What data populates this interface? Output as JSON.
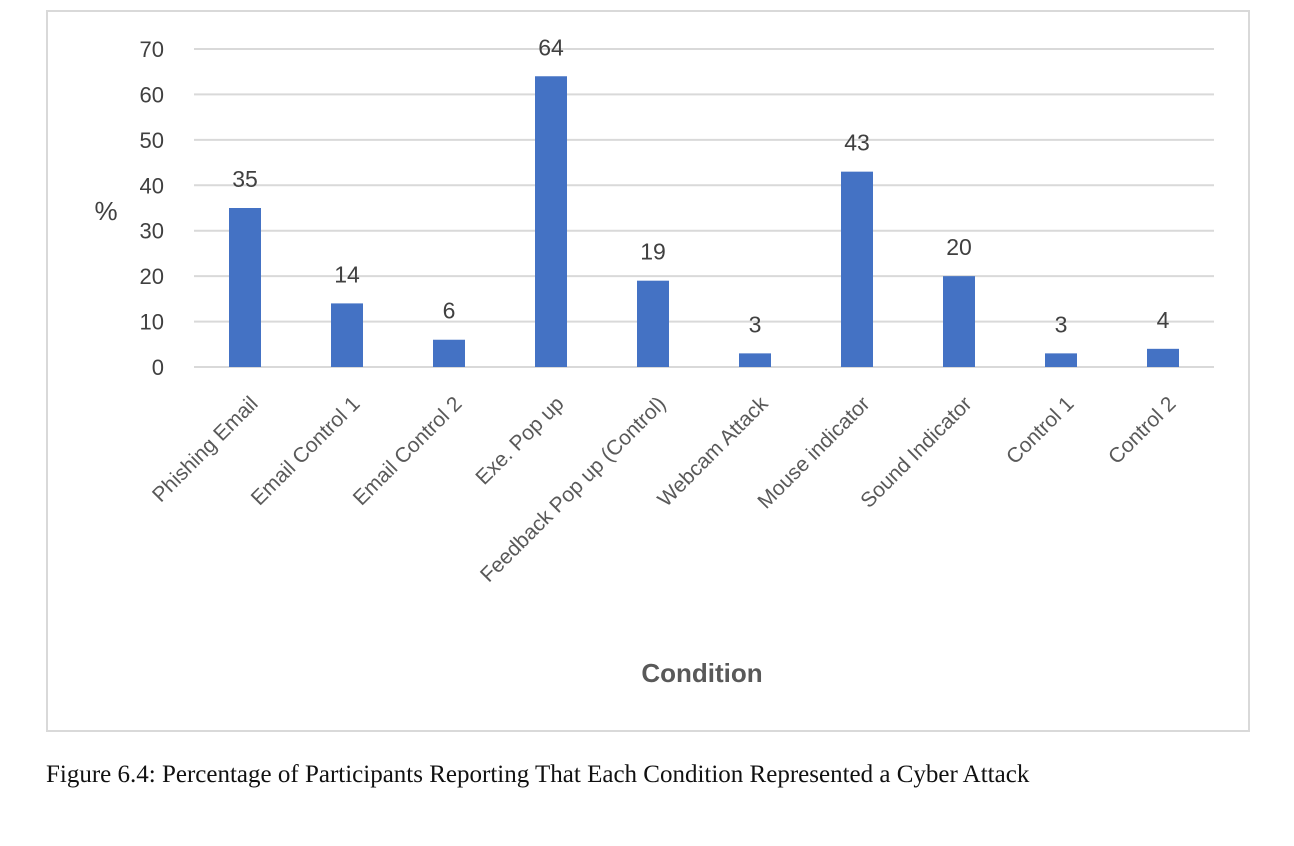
{
  "chart_data": {
    "type": "bar",
    "categories": [
      "Phishing Email",
      "Email Control 1",
      "Email Control 2",
      "Exe. Pop up",
      "Feedback Pop up (Control)",
      "Webcam Attack",
      "Mouse indicator",
      "Sound Indicator",
      "Control 1",
      "Control 2"
    ],
    "values": [
      35,
      14,
      6,
      64,
      19,
      3,
      43,
      20,
      3,
      4
    ],
    "data_labels": [
      "35",
      "14",
      "6",
      "64",
      "19",
      "3",
      "43",
      "20",
      "3",
      "4"
    ],
    "xlabel": "Condition",
    "ylabel": "%",
    "ylim": [
      0,
      70
    ],
    "yticks": [
      0,
      10,
      20,
      30,
      40,
      50,
      60,
      70
    ],
    "grid": true,
    "bar_color": "#4472c4",
    "grid_color": "#d9d9d9"
  },
  "caption": "Figure 6.4: Percentage of Participants Reporting That Each Condition Represented a Cyber Attack"
}
